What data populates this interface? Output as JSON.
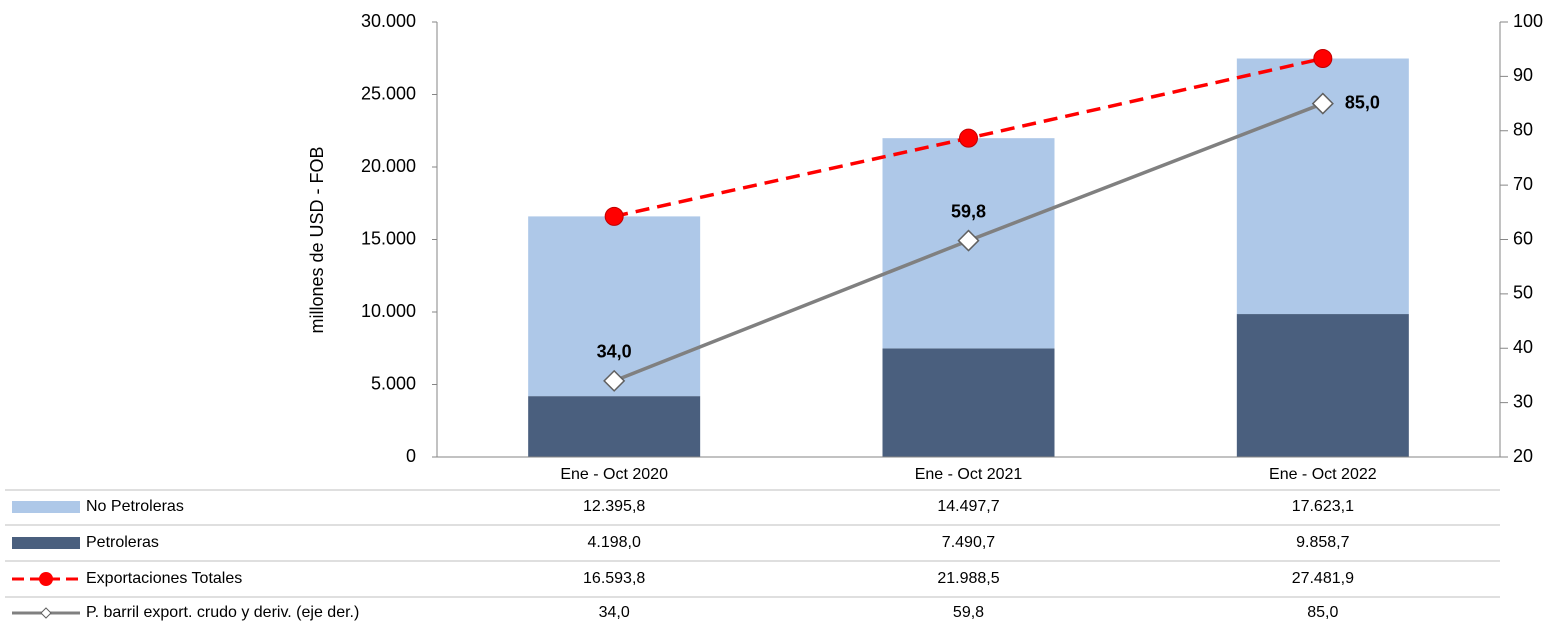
{
  "chart_data": {
    "type": "bar",
    "y_label": "millones de USD  - FOB",
    "categories": [
      "Ene - Oct 2020",
      "Ene - Oct 2021",
      "Ene - Oct 2022"
    ],
    "series": [
      {
        "name": "No Petroleras",
        "type": "bar",
        "stack": true,
        "color": "#aec8e8",
        "values": [
          12395.8,
          14497.7,
          17623.1
        ],
        "value_labels": [
          "12.395,8",
          "14.497,7",
          "17.623,1"
        ]
      },
      {
        "name": "Petroleras",
        "type": "bar",
        "stack": true,
        "color": "#4a5f7e",
        "values": [
          4198.0,
          7490.7,
          9858.7
        ],
        "value_labels": [
          "4.198,0",
          "7.490,7",
          "9.858,7"
        ]
      },
      {
        "name": "Exportaciones Totales",
        "type": "line",
        "dashed": true,
        "marker": "circle",
        "color": "#ff0000",
        "values": [
          16593.8,
          21988.5,
          27481.9
        ],
        "value_labels": [
          "16.593,8",
          "21.988,5",
          "27.481,9"
        ]
      },
      {
        "name": "P. barril export. crudo y deriv. (eje der.)",
        "type": "line",
        "axis": "y2",
        "marker": "diamond",
        "color": "#808080",
        "values": [
          34.0,
          59.8,
          85.0
        ],
        "value_labels": [
          "34,0",
          "59,8",
          "85,0"
        ],
        "show_labels": true
      }
    ],
    "ylim": [
      0,
      30000
    ],
    "yticks": [
      0,
      {
        "value": 5000,
        "label": "5.000"
      },
      {
        "value": 10000,
        "label": "10.000"
      },
      {
        "value": 15000,
        "label": "15.000"
      },
      {
        "value": 20000,
        "label": "20.000"
      },
      {
        "value": 25000,
        "label": "25.000"
      },
      {
        "value": 30000,
        "label": "30.000"
      }
    ],
    "y2lim": [
      20,
      100
    ],
    "y2ticks": [
      20,
      30,
      40,
      50,
      60,
      70,
      80,
      90,
      100
    ]
  }
}
